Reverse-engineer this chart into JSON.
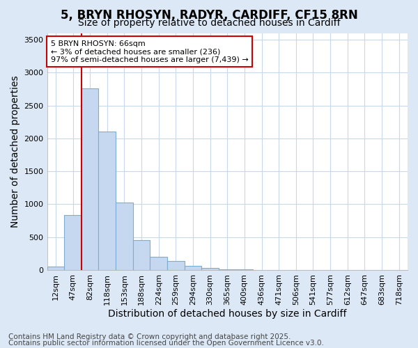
{
  "title_line1": "5, BRYN RHOSYN, RADYR, CARDIFF, CF15 8RN",
  "title_line2": "Size of property relative to detached houses in Cardiff",
  "xlabel": "Distribution of detached houses by size in Cardiff",
  "ylabel": "Number of detached properties",
  "bin_labels": [
    "12sqm",
    "47sqm",
    "82sqm",
    "118sqm",
    "153sqm",
    "188sqm",
    "224sqm",
    "259sqm",
    "294sqm",
    "330sqm",
    "365sqm",
    "400sqm",
    "436sqm",
    "471sqm",
    "506sqm",
    "541sqm",
    "577sqm",
    "612sqm",
    "647sqm",
    "683sqm",
    "718sqm"
  ],
  "bar_values": [
    50,
    840,
    2760,
    2100,
    1020,
    450,
    200,
    140,
    60,
    30,
    10,
    5,
    2,
    0,
    0,
    0,
    0,
    0,
    0,
    0,
    0
  ],
  "bar_color": "#c5d8f0",
  "bar_edgecolor": "#7aadd4",
  "vline_x": 1.5,
  "vline_color": "#cc0000",
  "ylim": [
    0,
    3600
  ],
  "yticks": [
    0,
    500,
    1000,
    1500,
    2000,
    2500,
    3000,
    3500
  ],
  "annotation_text": "5 BRYN RHOSYN: 66sqm\n← 3% of detached houses are smaller (236)\n97% of semi-detached houses are larger (7,439) →",
  "annotation_box_color": "#ffffff",
  "annotation_box_edgecolor": "#cc0000",
  "footer_line1": "Contains HM Land Registry data © Crown copyright and database right 2025.",
  "footer_line2": "Contains public sector information licensed under the Open Government Licence v3.0.",
  "figure_background_color": "#dce8f5",
  "plot_background_color": "#ffffff",
  "grid_color": "#c8d8ea",
  "title_fontsize": 12,
  "subtitle_fontsize": 10,
  "axis_label_fontsize": 10,
  "tick_fontsize": 8,
  "annotation_fontsize": 8,
  "footer_fontsize": 7.5
}
